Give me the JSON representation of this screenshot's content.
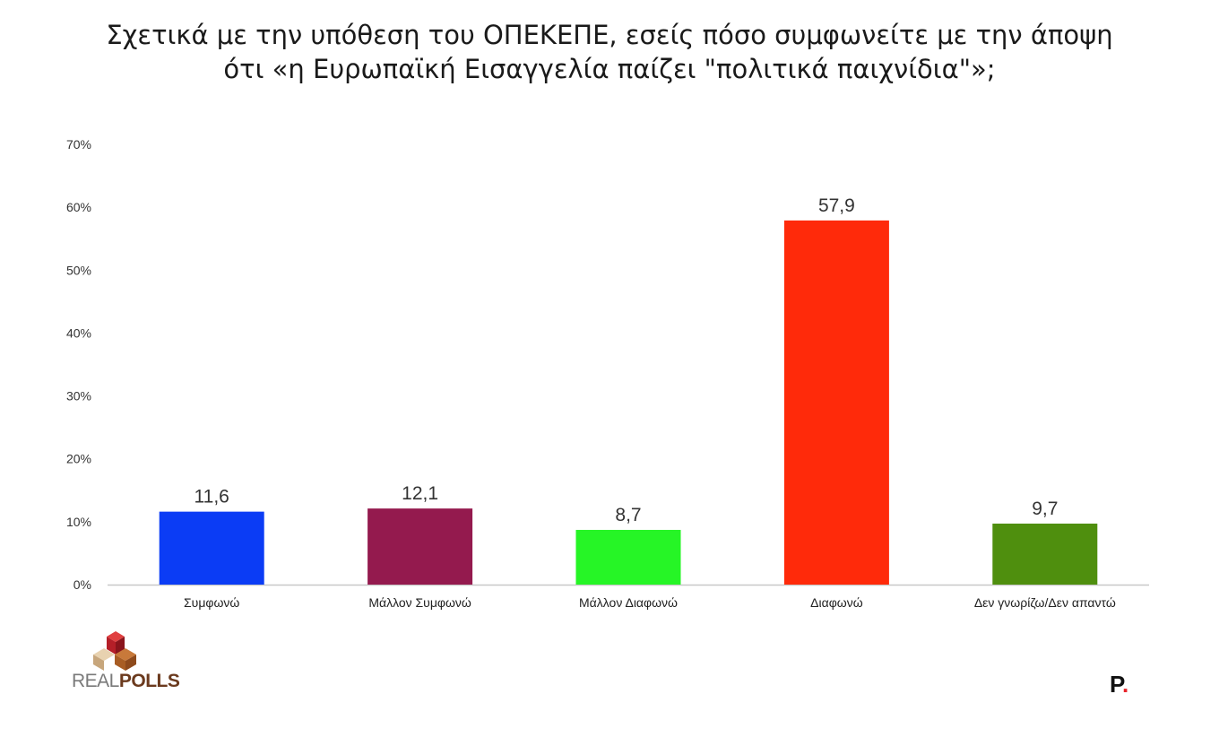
{
  "chart_data": {
    "type": "bar",
    "title_lines": [
      "Σχετικά με την υπόθεση του ΟΠΕΚΕΠΕ, εσείς πόσο συμφωνείτε με την άποψη",
      "ότι «η Ευρωπαϊκή Εισαγγελία παίζει \"πολιτικά παιχνίδια\"»;"
    ],
    "categories": [
      "Συμφωνώ",
      "Μάλλον Συμφωνώ",
      "Μάλλον Διαφωνώ",
      "Διαφωνώ",
      "Δεν γνωρίζω/Δεν απαντώ"
    ],
    "values": [
      11.6,
      12.1,
      8.7,
      57.9,
      9.7
    ],
    "value_labels": [
      "11,6",
      "12,1",
      "8,7",
      "57,9",
      "9,7"
    ],
    "colors": [
      "#0b3cf5",
      "#941a4e",
      "#26f526",
      "#ff2a0a",
      "#4f8f0e"
    ],
    "yticks": [
      "0%",
      "10%",
      "20%",
      "30%",
      "40%",
      "50%",
      "60%",
      "70%"
    ],
    "ylim": [
      0,
      70
    ],
    "grid": false,
    "legend": "none"
  },
  "logos": {
    "realpolls_a": "REAL",
    "realpolls_b": "POLLS",
    "publisher": "P",
    "publisher_dot": "."
  }
}
